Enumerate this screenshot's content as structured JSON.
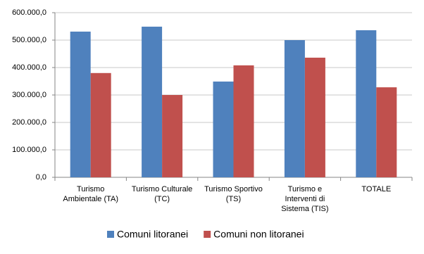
{
  "chart_data": {
    "type": "bar",
    "categories": [
      "Turismo Ambientale (TA)",
      "Turismo Culturale (TC)",
      "Turismo Sportivo (TS)",
      "Turismo e Interventi di Sistema (TIS)",
      "TOTALE"
    ],
    "series": [
      {
        "name": "Comuni litoranei",
        "color": "#4f81bd",
        "values": [
          531000,
          549000,
          349000,
          500000,
          536000
        ]
      },
      {
        "name": "Comuni non litoranei",
        "color": "#c0504d",
        "values": [
          380000,
          300000,
          408000,
          436000,
          328000
        ]
      }
    ],
    "ylim": [
      0,
      600000
    ],
    "yticks": [
      {
        "value": 0,
        "label": "0,0"
      },
      {
        "value": 100000,
        "label": "100.000,0"
      },
      {
        "value": 200000,
        "label": "200.000,0"
      },
      {
        "value": 300000,
        "label": "300.000,0"
      },
      {
        "value": 400000,
        "label": "400.000,0"
      },
      {
        "value": 500000,
        "label": "500.000,0"
      },
      {
        "value": 600000,
        "label": "600.000,0"
      }
    ],
    "grid": true,
    "legend": "bottom"
  }
}
